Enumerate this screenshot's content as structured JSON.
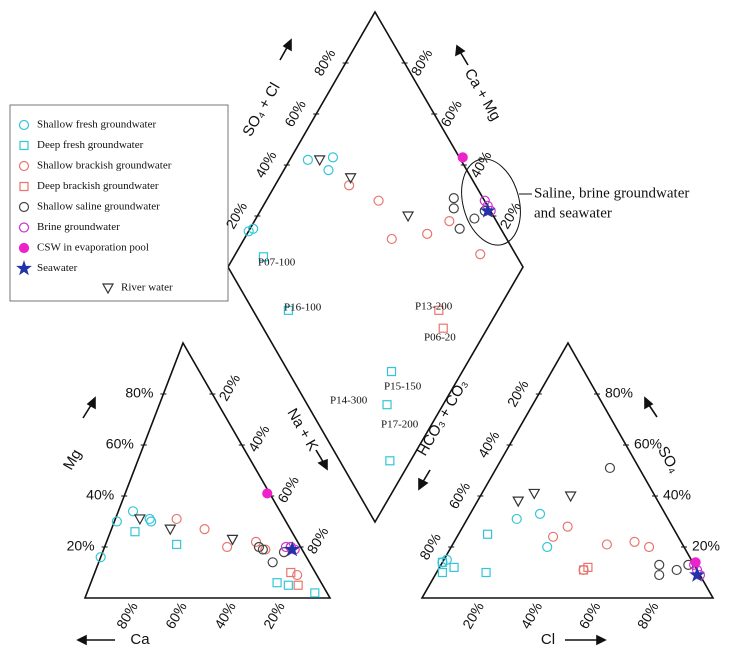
{
  "chart_data": {
    "type": "piper",
    "axis_labels": {
      "ca": "Ca",
      "mg": "Mg",
      "nak": "Na + K",
      "cl": "Cl",
      "so4": "SO₄",
      "hco3": "HCO₃ + CO₃",
      "so4cl": "SO₄ + Cl",
      "camg": "Ca + Mg"
    },
    "ticks": [
      {
        "value": 20,
        "label": "20%"
      },
      {
        "value": 40,
        "label": "40%"
      },
      {
        "value": 60,
        "label": "60%"
      },
      {
        "value": 80,
        "label": "80%"
      }
    ],
    "series": [
      {
        "name": "Shallow fresh groundwater",
        "marker": "circle",
        "color": "#33c6d8",
        "cations": [
          [
            84,
            16
          ],
          [
            69,
            30
          ],
          [
            60,
            34
          ],
          [
            55,
            31
          ],
          [
            55,
            30
          ]
        ],
        "anions": [
          [
            0,
            14
          ],
          [
            1,
            15
          ],
          [
            17,
            31
          ],
          [
            24,
            33
          ],
          [
            33,
            20
          ]
        ]
      },
      {
        "name": "Deep fresh groundwater",
        "marker": "square",
        "color": "#33c6d8",
        "cations": [
          [
            64,
            26
          ],
          [
            50,
            21
          ],
          [
            18,
            6
          ],
          [
            14,
            5
          ],
          [
            5,
            2
          ]
        ],
        "anions": [
          [
            0,
            14
          ],
          [
            2,
            10
          ],
          [
            10,
            25
          ],
          [
            17,
            10
          ],
          [
            5,
            12
          ]
        ]
      },
      {
        "name": "Shallow brackish groundwater",
        "marker": "circle",
        "color": "#e8766e",
        "cations": [
          [
            44,
            31
          ],
          [
            35,
            27
          ],
          [
            30,
            20
          ],
          [
            17,
            22
          ],
          [
            15,
            19
          ],
          [
            8,
            9
          ]
        ],
        "anions": [
          [
            33,
            24
          ],
          [
            36,
            28
          ],
          [
            50,
            11
          ],
          [
            53,
            21
          ],
          [
            62,
            22
          ],
          [
            68,
            20
          ]
        ]
      },
      {
        "name": "Deep brackish groundwater",
        "marker": "square",
        "color": "#e8766e",
        "cations": [
          [
            10,
            10
          ],
          [
            10,
            5
          ]
        ],
        "anions": [
          [
            51,
            12
          ],
          [
            50,
            11
          ]
        ]
      },
      {
        "name": "Shallow saline groundwater",
        "marker": "circle",
        "color": "#444444",
        "cations": [
          [
            17,
            20
          ],
          [
            16,
            19
          ],
          [
            15,
            14
          ],
          [
            8,
            18
          ],
          [
            4,
            20
          ]
        ],
        "anions": [
          [
            39,
            51
          ],
          [
            75,
            13
          ],
          [
            77,
            9
          ],
          [
            82,
            11
          ],
          [
            85,
            13
          ]
        ]
      },
      {
        "name": "Brine groundwater",
        "marker": "circle",
        "color": "#cc33cc",
        "cations": [
          [
            6,
            20
          ],
          [
            4,
            20
          ],
          [
            3,
            19
          ]
        ],
        "anions": [
          [
            87,
            13
          ],
          [
            89,
            11
          ],
          [
            91,
            9
          ]
        ]
      },
      {
        "name": "CSW in evaporation pool",
        "marker": "filled-circle",
        "color": "#ee22cc",
        "cations": [
          [
            1,
            41
          ]
        ],
        "anions": [
          [
            87,
            14
          ]
        ]
      },
      {
        "name": "Seawater",
        "marker": "star",
        "color": "#2233aa",
        "cations": [
          [
            4,
            19
          ]
        ],
        "anions": [
          [
            90,
            9
          ]
        ]
      },
      {
        "name": "River water",
        "marker": "triangle-down",
        "color": "#333333",
        "cations": [
          [
            59,
            31
          ],
          [
            49,
            27
          ],
          [
            26,
            23
          ]
        ],
        "anions": [
          [
            14,
            38
          ],
          [
            18,
            41
          ],
          [
            31,
            40
          ]
        ]
      }
    ],
    "point_labels": [
      "P07-100",
      "P16-100",
      "P13-200",
      "P06-20",
      "P14-300",
      "P15-150",
      "P17-200"
    ],
    "annotation": [
      "Saline, brine groundwater",
      "and seawater"
    ]
  }
}
